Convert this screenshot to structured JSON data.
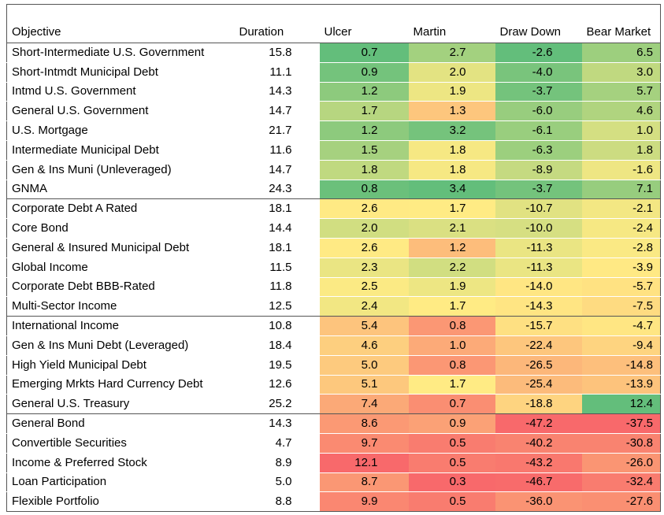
{
  "table": {
    "columns": [
      "Objective",
      "Duration",
      "Ulcer",
      "Martin",
      "Draw Down",
      "Bear Market"
    ],
    "scale_colors": [
      null,
      null,
      {
        "min": "#63be7b",
        "mid": "#ffeb84",
        "max": "#f8696b"
      },
      {
        "min": "#f8696b",
        "mid": "#ffeb84",
        "max": "#63be7b"
      },
      {
        "min": "#f8696b",
        "mid": "#ffeb84",
        "max": "#63be7b"
      },
      {
        "min": "#f8696b",
        "mid": "#ffeb84",
        "max": "#63be7b"
      }
    ],
    "groups": [
      {
        "rows": [
          [
            "Short-Intermediate U.S. Government",
            "15.8",
            "0.7",
            "2.7",
            "-2.6",
            "6.5"
          ],
          [
            "Short-Intmdt Municipal Debt",
            "11.1",
            "0.9",
            "2.0",
            "-4.0",
            "3.0"
          ],
          [
            "Intmd U.S. Government",
            "14.3",
            "1.2",
            "1.9",
            "-3.7",
            "5.7"
          ],
          [
            "General U.S. Government",
            "14.7",
            "1.7",
            "1.3",
            "-6.0",
            "4.6"
          ],
          [
            "U.S. Mortgage",
            "21.7",
            "1.2",
            "3.2",
            "-6.1",
            "1.0"
          ],
          [
            "Intermediate Municipal Debt",
            "11.6",
            "1.5",
            "1.8",
            "-6.3",
            "1.8"
          ],
          [
            "Gen & Ins Muni (Unleveraged)",
            "14.7",
            "1.8",
            "1.8",
            "-8.9",
            "-1.6"
          ],
          [
            "GNMA",
            "24.3",
            "0.8",
            "3.4",
            "-3.7",
            "7.1"
          ]
        ]
      },
      {
        "rows": [
          [
            "Corporate Debt A Rated",
            "18.1",
            "2.6",
            "1.7",
            "-10.7",
            "-2.1"
          ],
          [
            "Core Bond",
            "14.4",
            "2.0",
            "2.1",
            "-10.0",
            "-2.4"
          ],
          [
            "General & Insured Municipal Debt",
            "18.1",
            "2.6",
            "1.2",
            "-11.3",
            "-2.8"
          ],
          [
            "Global Income",
            "11.5",
            "2.3",
            "2.2",
            "-11.3",
            "-3.9"
          ],
          [
            "Corporate Debt BBB-Rated",
            "11.8",
            "2.5",
            "1.9",
            "-14.0",
            "-5.7"
          ],
          [
            "Multi-Sector Income",
            "12.5",
            "2.4",
            "1.7",
            "-14.3",
            "-7.5"
          ]
        ]
      },
      {
        "rows": [
          [
            "International Income",
            "10.8",
            "5.4",
            "0.8",
            "-15.7",
            "-4.7"
          ],
          [
            "Gen & Ins Muni Debt (Leveraged)",
            "18.4",
            "4.6",
            "1.0",
            "-22.4",
            "-9.4"
          ],
          [
            "High Yield Municipal Debt",
            "19.5",
            "5.0",
            "0.8",
            "-26.5",
            "-14.8"
          ],
          [
            "Emerging Mrkts Hard Currency Debt",
            "12.6",
            "5.1",
            "1.7",
            "-25.4",
            "-13.9"
          ],
          [
            "General U.S. Treasury",
            "25.2",
            "7.4",
            "0.7",
            "-18.8",
            "12.4"
          ]
        ]
      },
      {
        "rows": [
          [
            "General Bond",
            "14.3",
            "8.6",
            "0.9",
            "-47.2",
            "-37.5"
          ],
          [
            "Convertible Securities",
            "4.7",
            "9.7",
            "0.5",
            "-40.2",
            "-30.8"
          ],
          [
            "Income & Preferred Stock",
            "8.9",
            "12.1",
            "0.5",
            "-43.2",
            "-26.0"
          ],
          [
            "Loan Participation",
            "5.0",
            "8.7",
            "0.3",
            "-46.7",
            "-32.4"
          ],
          [
            "Flexible Portfolio",
            "8.8",
            "9.9",
            "0.5",
            "-36.0",
            "-27.6"
          ]
        ]
      }
    ]
  }
}
